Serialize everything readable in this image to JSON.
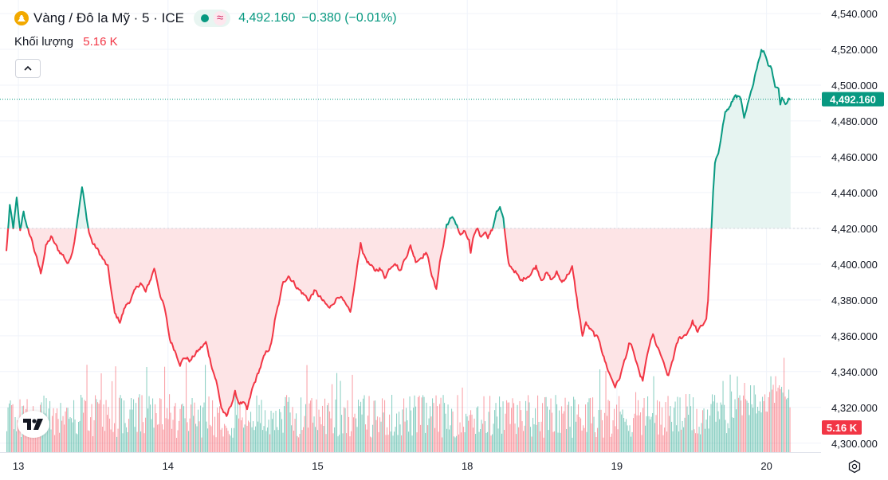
{
  "legend": {
    "symbol_title": "Vàng / Đô la Mỹ · 5 · ICE",
    "status_icon": "market-open-dot",
    "delay_icon": "≈",
    "last_price": "4,492.160",
    "change": "−0.380 (−0.01%)"
  },
  "volume": {
    "label": "Khối lượng",
    "value": "5.16 K"
  },
  "colors": {
    "up": "#089981",
    "down": "#f23645",
    "fill_up": "#e6f4f1",
    "fill_down": "#fde4e6"
  },
  "chart_data": {
    "type": "area",
    "baseline": 4420,
    "ylim": [
      4295,
      4544
    ],
    "y_ticks": [
      "4,540.000",
      "4,520.000",
      "4,500.000",
      "4,480.000",
      "4,460.000",
      "4,440.000",
      "4,420.000",
      "4,400.000",
      "4,380.000",
      "4,360.000",
      "4,340.000",
      "4,320.000",
      "4,300.000"
    ],
    "y_tick_values": [
      4540,
      4520,
      4500,
      4480,
      4460,
      4440,
      4420,
      4400,
      4380,
      4360,
      4340,
      4320,
      4300
    ],
    "x_ticks": [
      {
        "label": "13",
        "at": 0.07
      },
      {
        "label": "14",
        "at": 0.94
      },
      {
        "label": "15",
        "at": 1.81
      },
      {
        "label": "18",
        "at": 2.68
      },
      {
        "label": "19",
        "at": 3.55
      },
      {
        "label": "20",
        "at": 4.42
      }
    ],
    "x_range": [
      0,
      4.7
    ],
    "last_price_label": "4,492.160",
    "last_price": 4492.16,
    "volume_label": "5.16 K",
    "series": [
      {
        "points": [
          [
            0.0,
            4407
          ],
          [
            0.02,
            4432
          ],
          [
            0.04,
            4420
          ],
          [
            0.06,
            4436
          ],
          [
            0.08,
            4418
          ],
          [
            0.1,
            4430
          ],
          [
            0.12,
            4420
          ],
          [
            0.15,
            4413
          ],
          [
            0.17,
            4405
          ],
          [
            0.2,
            4395
          ],
          [
            0.23,
            4410
          ],
          [
            0.26,
            4415
          ],
          [
            0.3,
            4408
          ],
          [
            0.33,
            4405
          ],
          [
            0.36,
            4400
          ],
          [
            0.39,
            4410
          ],
          [
            0.42,
            4430
          ],
          [
            0.44,
            4443
          ],
          [
            0.46,
            4430
          ],
          [
            0.48,
            4418
          ],
          [
            0.5,
            4412
          ],
          [
            0.53,
            4408
          ],
          [
            0.56,
            4403
          ],
          [
            0.59,
            4398
          ],
          [
            0.61,
            4385
          ],
          [
            0.63,
            4372
          ],
          [
            0.66,
            4368
          ],
          [
            0.69,
            4376
          ],
          [
            0.72,
            4380
          ],
          [
            0.75,
            4385
          ],
          [
            0.78,
            4390
          ],
          [
            0.81,
            4384
          ],
          [
            0.84,
            4392
          ],
          [
            0.86,
            4398
          ],
          [
            0.89,
            4385
          ],
          [
            0.92,
            4375
          ],
          [
            0.95,
            4358
          ],
          [
            0.98,
            4352
          ],
          [
            1.01,
            4345
          ],
          [
            1.04,
            4348
          ],
          [
            1.07,
            4346
          ],
          [
            1.1,
            4350
          ],
          [
            1.13,
            4353
          ],
          [
            1.16,
            4356
          ],
          [
            1.19,
            4345
          ],
          [
            1.22,
            4335
          ],
          [
            1.25,
            4320
          ],
          [
            1.28,
            4314
          ],
          [
            1.3,
            4320
          ],
          [
            1.33,
            4328
          ],
          [
            1.35,
            4323
          ],
          [
            1.38,
            4322
          ],
          [
            1.4,
            4318
          ],
          [
            1.43,
            4330
          ],
          [
            1.46,
            4338
          ],
          [
            1.49,
            4346
          ],
          [
            1.51,
            4350
          ],
          [
            1.54,
            4355
          ],
          [
            1.56,
            4368
          ],
          [
            1.59,
            4380
          ],
          [
            1.61,
            4390
          ],
          [
            1.64,
            4394
          ],
          [
            1.67,
            4390
          ],
          [
            1.7,
            4386
          ],
          [
            1.73,
            4383
          ],
          [
            1.76,
            4380
          ],
          [
            1.79,
            4385
          ],
          [
            1.82,
            4382
          ],
          [
            1.85,
            4378
          ],
          [
            1.88,
            4375
          ],
          [
            1.91,
            4380
          ],
          [
            1.94,
            4383
          ],
          [
            1.97,
            4377
          ],
          [
            2.0,
            4372
          ],
          [
            2.02,
            4385
          ],
          [
            2.04,
            4398
          ],
          [
            2.06,
            4412
          ],
          [
            2.08,
            4405
          ],
          [
            2.11,
            4400
          ],
          [
            2.14,
            4396
          ],
          [
            2.17,
            4398
          ],
          [
            2.2,
            4393
          ],
          [
            2.23,
            4398
          ],
          [
            2.26,
            4402
          ],
          [
            2.29,
            4396
          ],
          [
            2.32,
            4404
          ],
          [
            2.35,
            4410
          ],
          [
            2.38,
            4402
          ],
          [
            2.41,
            4404
          ],
          [
            2.44,
            4407
          ],
          [
            2.46,
            4400
          ],
          [
            2.48,
            4392
          ],
          [
            2.5,
            4385
          ],
          [
            2.52,
            4402
          ],
          [
            2.54,
            4410
          ],
          [
            2.56,
            4422
          ],
          [
            2.58,
            4425
          ],
          [
            2.6,
            4425
          ],
          [
            2.62,
            4422
          ],
          [
            2.64,
            4416
          ],
          [
            2.66,
            4418
          ],
          [
            2.69,
            4413
          ],
          [
            2.7,
            4405
          ],
          [
            2.72,
            4416
          ],
          [
            2.74,
            4420
          ],
          [
            2.76,
            4415
          ],
          [
            2.78,
            4419
          ],
          [
            2.8,
            4416
          ],
          [
            2.83,
            4420
          ],
          [
            2.85,
            4430
          ],
          [
            2.87,
            4432
          ],
          [
            2.89,
            4425
          ],
          [
            2.9,
            4415
          ],
          [
            2.92,
            4400
          ],
          [
            2.94,
            4398
          ],
          [
            2.96,
            4396
          ],
          [
            2.99,
            4390
          ],
          [
            3.02,
            4393
          ],
          [
            3.05,
            4395
          ],
          [
            3.08,
            4399
          ],
          [
            3.11,
            4392
          ],
          [
            3.14,
            4395
          ],
          [
            3.17,
            4391
          ],
          [
            3.2,
            4395
          ],
          [
            3.23,
            4390
          ],
          [
            3.26,
            4394
          ],
          [
            3.29,
            4398
          ],
          [
            3.31,
            4385
          ],
          [
            3.33,
            4372
          ],
          [
            3.35,
            4360
          ],
          [
            3.37,
            4367
          ],
          [
            3.39,
            4364
          ],
          [
            3.42,
            4360
          ],
          [
            3.45,
            4357
          ],
          [
            3.48,
            4346
          ],
          [
            3.51,
            4338
          ],
          [
            3.54,
            4332
          ],
          [
            3.56,
            4335
          ],
          [
            3.58,
            4341
          ],
          [
            3.6,
            4348
          ],
          [
            3.62,
            4355
          ],
          [
            3.64,
            4353
          ],
          [
            3.66,
            4346
          ],
          [
            3.68,
            4338
          ],
          [
            3.7,
            4335
          ],
          [
            3.72,
            4345
          ],
          [
            3.74,
            4355
          ],
          [
            3.76,
            4360
          ],
          [
            3.79,
            4352
          ],
          [
            3.81,
            4348
          ],
          [
            3.83,
            4341
          ],
          [
            3.85,
            4337
          ],
          [
            3.87,
            4345
          ],
          [
            3.89,
            4352
          ],
          [
            3.91,
            4358
          ],
          [
            3.94,
            4360
          ],
          [
            3.96,
            4362
          ],
          [
            3.99,
            4368
          ],
          [
            4.02,
            4362
          ],
          [
            4.05,
            4366
          ],
          [
            4.07,
            4370
          ],
          [
            4.08,
            4380
          ],
          [
            4.09,
            4400
          ],
          [
            4.1,
            4420
          ],
          [
            4.11,
            4440
          ],
          [
            4.12,
            4455
          ],
          [
            4.14,
            4462
          ],
          [
            4.16,
            4475
          ],
          [
            4.18,
            4485
          ],
          [
            4.21,
            4488
          ],
          [
            4.24,
            4495
          ],
          [
            4.27,
            4492
          ],
          [
            4.29,
            4480
          ],
          [
            4.31,
            4488
          ],
          [
            4.33,
            4495
          ],
          [
            4.35,
            4505
          ],
          [
            4.37,
            4513
          ],
          [
            4.39,
            4520
          ],
          [
            4.41,
            4518
          ],
          [
            4.43,
            4512
          ],
          [
            4.45,
            4510
          ],
          [
            4.47,
            4500
          ],
          [
            4.49,
            4498
          ],
          [
            4.5,
            4490
          ],
          [
            4.51,
            4493
          ],
          [
            4.53,
            4490
          ],
          [
            4.55,
            4492
          ],
          [
            4.56,
            4492.16
          ]
        ]
      }
    ]
  }
}
